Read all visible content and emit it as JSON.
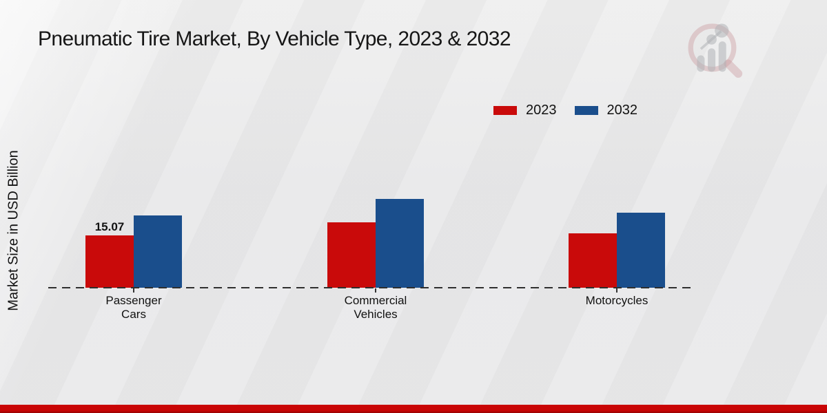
{
  "header": {
    "title": "Pneumatic Tire Market, By Vehicle Type, 2023 & 2032"
  },
  "branding": {
    "logo_name": "market-research-future-logo",
    "logo_ring_color": "#c9969b",
    "logo_bars_color": "#b4b6bb"
  },
  "colors": {
    "series_2023": "#c90a0a",
    "series_2032": "#1a4e8c",
    "axis_dash": "#2e2e2e",
    "bottom_strip": "#c90505",
    "text": "#111111"
  },
  "chart_data": {
    "type": "bar",
    "title": "Pneumatic Tire Market, By Vehicle Type, 2023 & 2032",
    "xlabel": "",
    "ylabel": "Market Size in USD Billion",
    "categories": [
      "Passenger Cars",
      "Commercial Vehicles",
      "Motorcycles"
    ],
    "category_lines": [
      [
        "Passenger",
        "Cars"
      ],
      [
        "Commercial",
        "Vehicles"
      ],
      [
        "Motorcycles"
      ]
    ],
    "series": [
      {
        "name": "2023",
        "color": "#c90a0a",
        "values": [
          15.07,
          18.8,
          15.7
        ]
      },
      {
        "name": "2032",
        "color": "#1a4e8c",
        "values": [
          20.8,
          25.6,
          21.6
        ]
      }
    ],
    "data_labels": [
      {
        "category_index": 0,
        "series_index": 0,
        "text": "15.07"
      }
    ],
    "ylim": [
      0,
      30
    ],
    "grid": false,
    "legend_position": "top-right",
    "baseline_style": "dashed"
  }
}
